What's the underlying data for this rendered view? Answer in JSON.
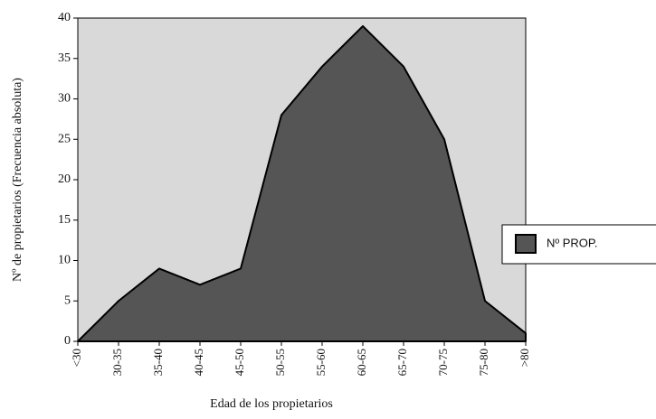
{
  "chart_data": {
    "type": "area",
    "x_label": "Edad de los propietarios",
    "y_label": "Nº de propietarios (Frecuencia absoluta)",
    "categories": [
      "<30",
      "30-35",
      "35-40",
      "40-45",
      "45-50",
      "50-55",
      "55-60",
      "60-65",
      "65-70",
      "70-75",
      "75-80",
      ">80"
    ],
    "series": [
      {
        "name": "Nº PROP.",
        "color": "#555555",
        "values": [
          0,
          5,
          9,
          7,
          9,
          28,
          34,
          39,
          34,
          25,
          5,
          1
        ]
      }
    ],
    "ylim": [
      0,
      40
    ],
    "yticks": [
      0,
      5,
      10,
      15,
      20,
      25,
      30,
      35,
      40
    ],
    "background": "#d9d9d9",
    "legend": "right"
  }
}
